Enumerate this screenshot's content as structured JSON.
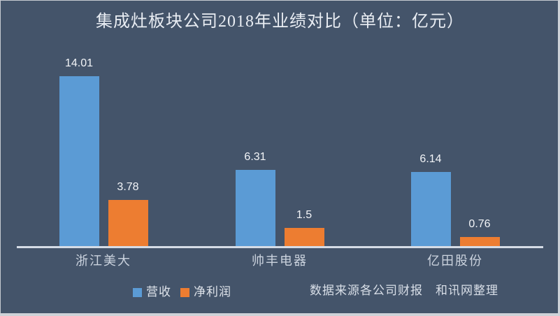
{
  "title": "集成灶板块公司2018年业绩对比（单位：亿元）",
  "chart_data": {
    "type": "bar",
    "title": "集成灶板块公司2018年业绩对比（单位：亿元）",
    "unit": "亿元",
    "categories": [
      "浙江美大",
      "帅丰电器",
      "亿田股份"
    ],
    "series": [
      {
        "name": "营收",
        "color": "#5B9BD5",
        "values": [
          14.01,
          6.31,
          6.14
        ]
      },
      {
        "name": "净利润",
        "color": "#ED7D31",
        "values": [
          3.78,
          1.5,
          0.76
        ]
      }
    ],
    "data_labels": [
      [
        "14.01",
        "6.31",
        "6.14"
      ],
      [
        "3.78",
        "1.5",
        "0.76"
      ]
    ],
    "ylim": [
      0,
      14.7
    ],
    "grid": false,
    "legend_position": "bottom",
    "background_color": "#44546A",
    "axis_color": "#d5dce6"
  },
  "footer": {
    "source": "数据来源各公司财报",
    "credit": "和讯网整理"
  }
}
